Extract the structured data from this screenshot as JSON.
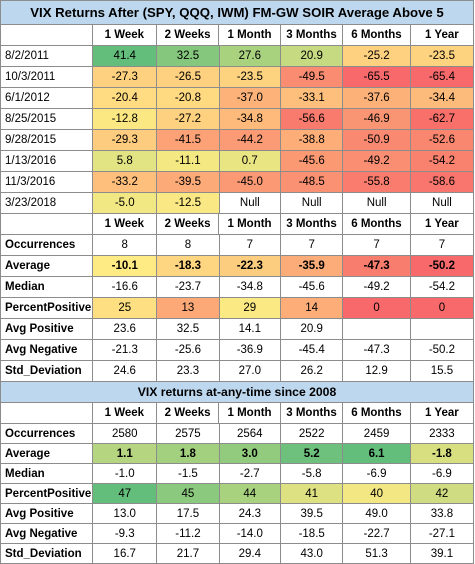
{
  "title": "VIX Returns After (SPY, QQQ, IWM) FM-GW SOIR Average Above 5",
  "headers": [
    "1 Week",
    "2 Weeks",
    "1 Month",
    "3 Months",
    "6 Months",
    "1 Year"
  ],
  "signals": [
    {
      "label": "8/2/2011",
      "values": [
        "41.4",
        "32.5",
        "27.6",
        "20.9",
        "-25.2",
        "-23.5"
      ],
      "colors": [
        "#63be7b",
        "#84c77d",
        "#a9d27f",
        "#c5da81",
        "#fdd17f",
        "#fed380"
      ]
    },
    {
      "label": "10/3/2011",
      "values": [
        "-27.3",
        "-26.5",
        "-23.5",
        "-49.5",
        "-65.5",
        "-65.4"
      ],
      "colors": [
        "#fdd17f",
        "#fdd17f",
        "#fed380",
        "#fa8c72",
        "#f8696b",
        "#f8696b"
      ]
    },
    {
      "label": "6/1/2012",
      "values": [
        "-20.4",
        "-20.8",
        "-37.0",
        "-33.1",
        "-37.6",
        "-34.4"
      ],
      "colors": [
        "#ffdb81",
        "#ffda81",
        "#fcb279",
        "#fdbf7b",
        "#fcb179",
        "#fdbb7b"
      ]
    },
    {
      "label": "8/25/2015",
      "values": [
        "-12.8",
        "-27.2",
        "-34.8",
        "-56.6",
        "-46.9",
        "-62.7"
      ],
      "colors": [
        "#fbe883",
        "#fdd17f",
        "#fdba7a",
        "#f97b6e",
        "#fa9574",
        "#f87069"
      ]
    },
    {
      "label": "9/28/2015",
      "values": [
        "-29.3",
        "-41.5",
        "-44.2",
        "-38.8",
        "-50.9",
        "-52.6"
      ],
      "colors": [
        "#fdcc7e",
        "#fca276",
        "#fb9b75",
        "#fcad78",
        "#f98a71",
        "#f9866f"
      ]
    },
    {
      "label": "1/13/2016",
      "values": [
        "5.8",
        "-11.1",
        "0.7",
        "-45.6",
        "-49.2",
        "-54.2"
      ],
      "colors": [
        "#e2e383",
        "#f4e883",
        "#eae583",
        "#fb9973",
        "#f98e72",
        "#f9826e"
      ]
    },
    {
      "label": "11/3/2016",
      "values": [
        "-33.2",
        "-39.5",
        "-45.0",
        "-48.5",
        "-55.8",
        "-58.6"
      ],
      "colors": [
        "#fdbf7b",
        "#fcaa77",
        "#fb9974",
        "#fa9173",
        "#f97c6e",
        "#f8766d"
      ]
    },
    {
      "label": "3/23/2018",
      "values": [
        "-5.0",
        "-12.5",
        "Null",
        "Null",
        "Null",
        "Null"
      ],
      "colors": [
        "#f1e783",
        "#f9e883",
        "#ffffff",
        "#ffffff",
        "#ffffff",
        "#ffffff"
      ]
    }
  ],
  "stats1": [
    {
      "label": "Occurrences",
      "values": [
        "8",
        "8",
        "7",
        "7",
        "7",
        "7"
      ],
      "bold": false,
      "colors": [
        "#ffffff",
        "#ffffff",
        "#ffffff",
        "#ffffff",
        "#ffffff",
        "#ffffff"
      ]
    },
    {
      "label": "Average",
      "values": [
        "-10.1",
        "-18.3",
        "-22.3",
        "-35.9",
        "-47.3",
        "-50.2"
      ],
      "bold": true,
      "colors": [
        "#ffeb84",
        "#fed581",
        "#fdcd7f",
        "#fcac78",
        "#f97d6e",
        "#f8696b"
      ]
    },
    {
      "label": "Median",
      "values": [
        "-16.6",
        "-23.7",
        "-34.8",
        "-45.6",
        "-49.2",
        "-54.2"
      ],
      "bold": false,
      "colors": [
        "#ffffff",
        "#ffffff",
        "#ffffff",
        "#ffffff",
        "#ffffff",
        "#ffffff"
      ]
    },
    {
      "label": "PercentPositive",
      "values": [
        "25",
        "13",
        "29",
        "14",
        "0",
        "0"
      ],
      "bold": false,
      "colors": [
        "#fedf81",
        "#fca977",
        "#fbe983",
        "#fdae78",
        "#f8696b",
        "#f8696b"
      ]
    },
    {
      "label": "Avg Positive",
      "values": [
        "23.6",
        "32.5",
        "14.1",
        "20.9",
        "",
        ""
      ],
      "bold": false,
      "colors": [
        "#ffffff",
        "#ffffff",
        "#ffffff",
        "#ffffff",
        "#ffffff",
        "#ffffff"
      ]
    },
    {
      "label": "Avg Negative",
      "values": [
        "-21.3",
        "-25.6",
        "-36.9",
        "-45.4",
        "-47.3",
        "-50.2"
      ],
      "bold": false,
      "colors": [
        "#ffffff",
        "#ffffff",
        "#ffffff",
        "#ffffff",
        "#ffffff",
        "#ffffff"
      ]
    },
    {
      "label": "Std_Deviation",
      "values": [
        "24.6",
        "23.3",
        "27.0",
        "26.2",
        "12.9",
        "15.5"
      ],
      "bold": false,
      "colors": [
        "#ffffff",
        "#ffffff",
        "#ffffff",
        "#ffffff",
        "#ffffff",
        "#ffffff"
      ]
    }
  ],
  "subtitle": "VIX returns at-any-time since 2008",
  "stats2": [
    {
      "label": "Occurrences",
      "values": [
        "2580",
        "2575",
        "2564",
        "2522",
        "2459",
        "2333"
      ],
      "bold": false,
      "colors": [
        "#ffffff",
        "#ffffff",
        "#ffffff",
        "#ffffff",
        "#ffffff",
        "#ffffff"
      ]
    },
    {
      "label": "Average",
      "values": [
        "1.1",
        "1.8",
        "3.0",
        "5.2",
        "6.1",
        "-1.8"
      ],
      "bold": true,
      "colors": [
        "#b5d580",
        "#a3d07f",
        "#92cb7e",
        "#6dc17c",
        "#63be7b",
        "#d8df81"
      ]
    },
    {
      "label": "Median",
      "values": [
        "-1.0",
        "-1.5",
        "-2.7",
        "-5.8",
        "-6.9",
        "-6.9"
      ],
      "bold": false,
      "colors": [
        "#ffffff",
        "#ffffff",
        "#ffffff",
        "#ffffff",
        "#ffffff",
        "#ffffff"
      ]
    },
    {
      "label": "PercentPositive",
      "values": [
        "47",
        "45",
        "44",
        "41",
        "40",
        "42"
      ],
      "bold": false,
      "colors": [
        "#63be7b",
        "#8bc97e",
        "#a9d27f",
        "#dee182",
        "#f2e783",
        "#d0dc81"
      ]
    },
    {
      "label": "Avg Positive",
      "values": [
        "13.0",
        "17.5",
        "24.3",
        "39.5",
        "49.0",
        "33.8"
      ],
      "bold": false,
      "colors": [
        "#ffffff",
        "#ffffff",
        "#ffffff",
        "#ffffff",
        "#ffffff",
        "#ffffff"
      ]
    },
    {
      "label": "Avg Negative",
      "values": [
        "-9.3",
        "-11.2",
        "-14.0",
        "-18.5",
        "-22.7",
        "-27.1"
      ],
      "bold": false,
      "colors": [
        "#ffffff",
        "#ffffff",
        "#ffffff",
        "#ffffff",
        "#ffffff",
        "#ffffff"
      ]
    },
    {
      "label": "Std_Deviation",
      "values": [
        "16.7",
        "21.7",
        "29.4",
        "43.0",
        "51.3",
        "39.1"
      ],
      "bold": false,
      "colors": [
        "#ffffff",
        "#ffffff",
        "#ffffff",
        "#ffffff",
        "#ffffff",
        "#ffffff"
      ]
    }
  ],
  "colors": {
    "header_fill": "#bdd7ee",
    "grid_line": "#8c8c8c"
  }
}
